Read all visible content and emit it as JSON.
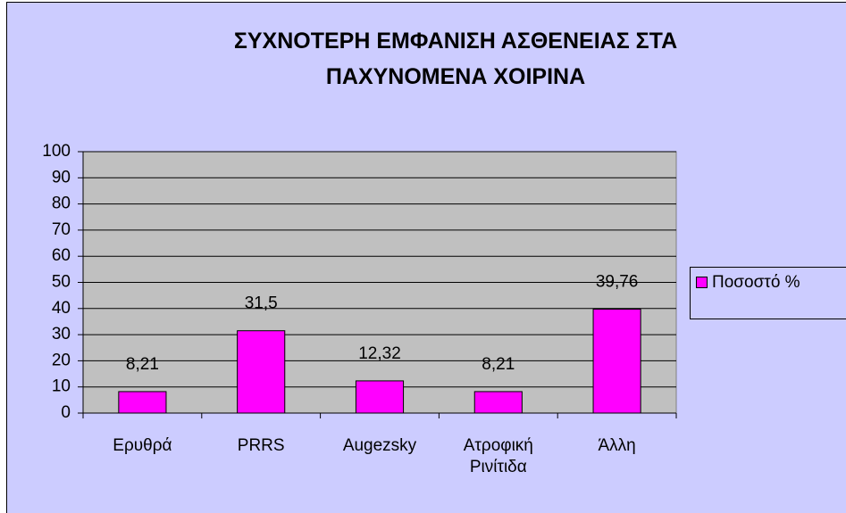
{
  "chart_data": {
    "type": "bar",
    "title": "ΣΥΧΝΟΤΕΡΗ ΕΜΦΑΝΙΣΗ ΑΣΘΕΝΕΙΑΣ ΣΤΑ ΠΑΧΥΝΟΜΕΝΑ ΧΟΙΡΙΝΑ",
    "categories": [
      "Ερυθρά",
      "PRRS",
      "Augezsky",
      "Ατροφική Ρινίτιδα",
      "Άλλη"
    ],
    "series": [
      {
        "name": "Ποσοστό %",
        "color": "#ff00ff",
        "values": [
          8.21,
          31.5,
          12.32,
          8.21,
          39.76
        ],
        "value_labels": [
          "8,21",
          "31,5",
          "12,32",
          "8,21",
          "39,76"
        ]
      }
    ],
    "ylim": [
      0,
      100
    ],
    "yticks": [
      0,
      10,
      20,
      30,
      40,
      50,
      60,
      70,
      80,
      90,
      100
    ],
    "grid": true,
    "legend": "right"
  }
}
